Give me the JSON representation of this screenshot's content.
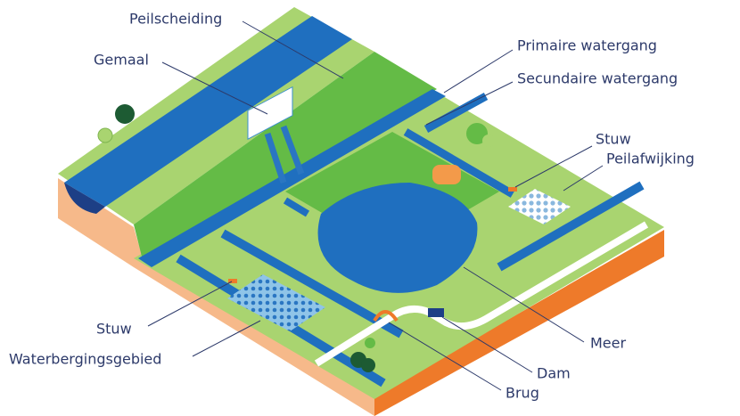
{
  "labels": {
    "peilscheiding": "Peilscheiding",
    "gemaal": "Gemaal",
    "primaire_watergang": "Primaire watergang",
    "secundaire_watergang": "Secundaire watergang",
    "stuw_right": "Stuw",
    "peilafwijking": "Peilafwijking",
    "stuw_left": "Stuw",
    "waterbergingsgebied": "Waterbergingsgebied",
    "meer": "Meer",
    "dam": "Dam",
    "brug": "Brug"
  }
}
